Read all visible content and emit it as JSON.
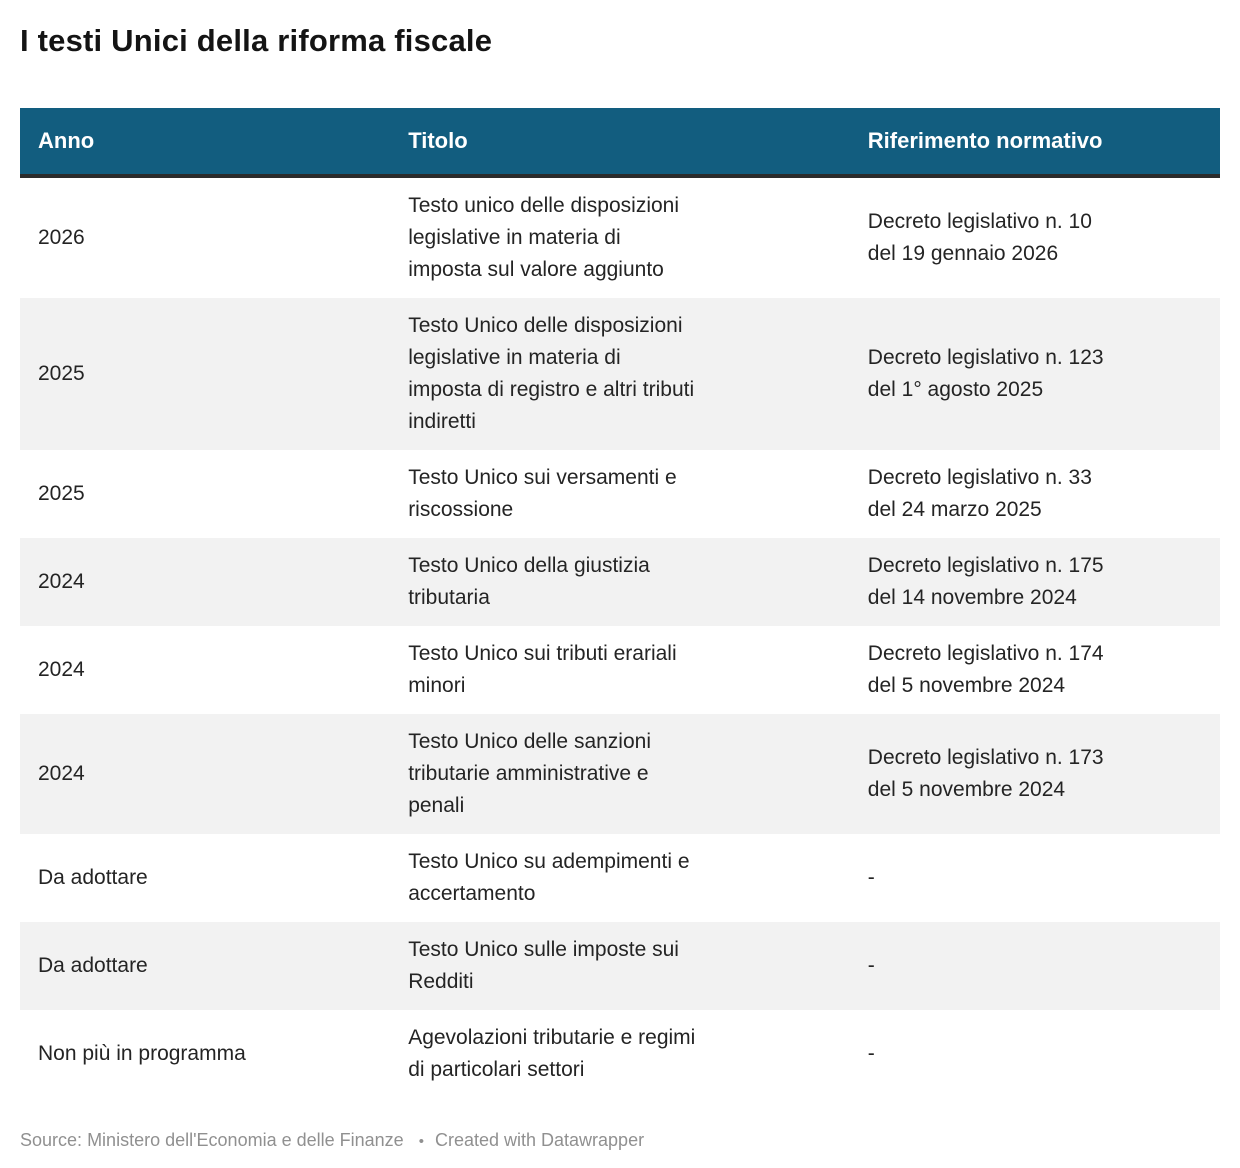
{
  "title": "I testi Unici della riforma fiscale",
  "colors": {
    "header_background": "#125d7f",
    "header_text": "#ffffff",
    "header_bottom_border": "#2b2b2b",
    "zebra_stripe": "#f2f2f2",
    "body_text": "#242424",
    "footer_text": "#909090"
  },
  "chart_data": {
    "type": "table",
    "title": "I testi Unici della riforma fiscale",
    "columns": [
      "Anno",
      "Titolo",
      "Riferimento normativo"
    ],
    "rows": [
      {
        "anno": "2026",
        "titolo": "Testo unico delle disposizioni\nlegislative in materia di\nimposta sul valore aggiunto",
        "riferimento": "Decreto legislativo n. 10\ndel 19 gennaio 2026"
      },
      {
        "anno": "2025",
        "titolo": "Testo Unico delle disposizioni\nlegislative in materia di\nimposta di registro e altri tributi\nindiretti",
        "riferimento": "Decreto legislativo n. 123\ndel 1° agosto 2025"
      },
      {
        "anno": "2025",
        "titolo": "Testo Unico sui versamenti e\nriscossione",
        "riferimento": "Decreto legislativo n. 33\ndel 24 marzo 2025"
      },
      {
        "anno": "2024",
        "titolo": "Testo Unico della giustizia\ntributaria",
        "riferimento": "Decreto legislativo n. 175\ndel 14 novembre 2024"
      },
      {
        "anno": "2024",
        "titolo": "Testo Unico sui tributi erariali\nminori",
        "riferimento": "Decreto legislativo n. 174\ndel 5 novembre 2024"
      },
      {
        "anno": "2024",
        "titolo": "Testo Unico delle sanzioni\ntributarie amministrative e\npenali",
        "riferimento": "Decreto legislativo n. 173\ndel 5 novembre 2024"
      },
      {
        "anno": "Da adottare",
        "titolo": "Testo Unico su adempimenti e\naccertamento",
        "riferimento": "-"
      },
      {
        "anno": "Da adottare",
        "titolo": "Testo Unico sulle imposte sui\nRedditi",
        "riferimento": "-"
      },
      {
        "anno": "Non più in programma",
        "titolo": "Agevolazioni tributarie e regimi\ndi particolari settori",
        "riferimento": "-"
      }
    ]
  },
  "footer": {
    "source_label": "Source:",
    "source": "Ministero dell'Economia e delle Finanze",
    "separator": "•",
    "attribution": "Created with Datawrapper"
  }
}
